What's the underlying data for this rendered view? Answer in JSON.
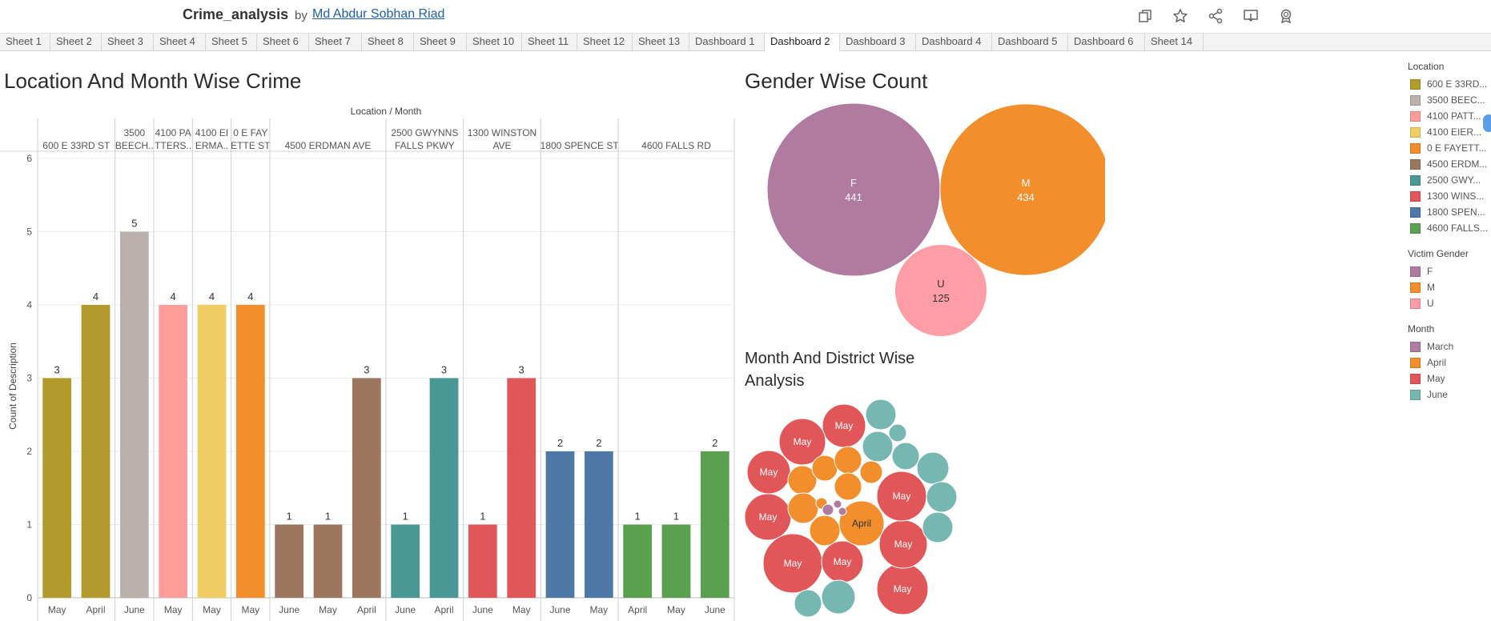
{
  "workbook": {
    "title": "Crime_analysis",
    "by_label": "by",
    "author": "Md Abdur Sobhan Riad"
  },
  "toolbar_icons": [
    "copy-icon",
    "star-icon",
    "share-icon",
    "download-icon",
    "badge-icon"
  ],
  "tabs": [
    "Sheet 1",
    "Sheet 2",
    "Sheet 3",
    "Sheet 4",
    "Sheet 5",
    "Sheet 6",
    "Sheet 7",
    "Sheet 8",
    "Sheet 9",
    "Sheet 10",
    "Sheet 11",
    "Sheet 12",
    "Sheet 13",
    "Dashboard 1",
    "Dashboard 2",
    "Dashboard 3",
    "Dashboard 4",
    "Dashboard 5",
    "Dashboard 6",
    "Sheet 14"
  ],
  "active_tab": "Dashboard 2",
  "dashboard": {
    "title_left": "Location And Month Wise Crime",
    "title_gender": "Gender Wise Count",
    "title_month_district": "Month And District Wise Analysis"
  },
  "chart_data": [
    {
      "type": "bar",
      "title": "Location And Month Wise Crime",
      "header_label": "Location / Month",
      "ylabel": "Count of Description",
      "ylim": [
        0,
        6
      ],
      "yticks": [
        "0",
        "1",
        "2",
        "3",
        "4",
        "5",
        "6"
      ],
      "grid": true,
      "panes": [
        {
          "label": [
            "600 E 33RD ST"
          ],
          "color": "#b39a2c",
          "bars": [
            {
              "month": "May",
              "value": 3
            },
            {
              "month": "April",
              "value": 4
            }
          ]
        },
        {
          "label": [
            "3500",
            "BEECH.."
          ],
          "color": "#bab0ac",
          "bars": [
            {
              "month": "June",
              "value": 5
            }
          ]
        },
        {
          "label": [
            "4100 PA",
            "TTERS.."
          ],
          "color": "#ff9d9a",
          "bars": [
            {
              "month": "May",
              "value": 4
            }
          ]
        },
        {
          "label": [
            "4100 EI",
            "ERMA.."
          ],
          "color": "#f1ce63",
          "bars": [
            {
              "month": "May",
              "value": 4
            }
          ]
        },
        {
          "label": [
            "0 E FAY",
            "ETTE ST"
          ],
          "color": "#f28e2b",
          "bars": [
            {
              "month": "May",
              "value": 4
            }
          ]
        },
        {
          "label": [
            "4500 ERDMAN AVE"
          ],
          "color": "#9d7660",
          "bars": [
            {
              "month": "June",
              "value": 1
            },
            {
              "month": "May",
              "value": 1
            },
            {
              "month": "April",
              "value": 3
            }
          ]
        },
        {
          "label": [
            "2500 GWYNNS",
            "FALLS PKWY"
          ],
          "color": "#499894",
          "bars": [
            {
              "month": "June",
              "value": 1
            },
            {
              "month": "April",
              "value": 3
            }
          ]
        },
        {
          "label": [
            "1300 WINSTON",
            "AVE"
          ],
          "color": "#e15759",
          "bars": [
            {
              "month": "June",
              "value": 1
            },
            {
              "month": "May",
              "value": 3
            }
          ]
        },
        {
          "label": [
            "1800 SPENCE ST"
          ],
          "color": "#4e79a7",
          "bars": [
            {
              "month": "June",
              "value": 2
            },
            {
              "month": "May",
              "value": 2
            }
          ]
        },
        {
          "label": [
            "4600 FALLS RD"
          ],
          "color": "#59a14f",
          "bars": [
            {
              "month": "April",
              "value": 1
            },
            {
              "month": "May",
              "value": 1
            },
            {
              "month": "June",
              "value": 2
            }
          ]
        }
      ]
    },
    {
      "type": "bubble",
      "title": "Gender Wise Count",
      "bubbles": [
        {
          "label": "F",
          "value": 441,
          "color": "#b07aa1"
        },
        {
          "label": "M",
          "value": 434,
          "color": "#f28e2b"
        },
        {
          "label": "U",
          "value": 125,
          "color": "#ff9da7"
        }
      ]
    },
    {
      "type": "bubble",
      "title": "Month And District Wise Analysis",
      "month_colors": {
        "March": "#b07aa1",
        "April": "#f28e2b",
        "May": "#e15759",
        "June": "#76b7b2"
      },
      "bubbles": [
        {
          "month": "May",
          "label": "May"
        },
        {
          "month": "May",
          "label": "May"
        },
        {
          "month": "May",
          "label": "May"
        },
        {
          "month": "May",
          "label": "May"
        },
        {
          "month": "May",
          "label": "May"
        },
        {
          "month": "May",
          "label": "May"
        },
        {
          "month": "May",
          "label": "May"
        },
        {
          "month": "May",
          "label": "May"
        },
        {
          "month": "May",
          "label": "May"
        },
        {
          "month": "April",
          "label": "April"
        },
        {
          "month": "April",
          "label": ""
        },
        {
          "month": "April",
          "label": ""
        },
        {
          "month": "April",
          "label": ""
        },
        {
          "month": "April",
          "label": ""
        },
        {
          "month": "April",
          "label": ""
        },
        {
          "month": "April",
          "label": ""
        },
        {
          "month": "April",
          "label": ""
        },
        {
          "month": "April",
          "label": ""
        },
        {
          "month": "June",
          "label": ""
        },
        {
          "month": "June",
          "label": ""
        },
        {
          "month": "June",
          "label": ""
        },
        {
          "month": "June",
          "label": ""
        },
        {
          "month": "June",
          "label": ""
        },
        {
          "month": "June",
          "label": ""
        },
        {
          "month": "June",
          "label": ""
        },
        {
          "month": "June",
          "label": ""
        },
        {
          "month": "June",
          "label": ""
        },
        {
          "month": "March",
          "label": ""
        },
        {
          "month": "March",
          "label": ""
        },
        {
          "month": "March",
          "label": ""
        }
      ]
    }
  ],
  "legends": [
    {
      "title": "Location",
      "items": [
        {
          "label": "600 E 33RD...",
          "color": "#b39a2c"
        },
        {
          "label": "3500 BEEC...",
          "color": "#bab0ac"
        },
        {
          "label": "4100 PATT...",
          "color": "#ff9d9a"
        },
        {
          "label": "4100 EIER...",
          "color": "#f1ce63"
        },
        {
          "label": "0 E FAYETT...",
          "color": "#f28e2b"
        },
        {
          "label": "4500 ERDM...",
          "color": "#9d7660"
        },
        {
          "label": "2500 GWY...",
          "color": "#499894"
        },
        {
          "label": "1300 WINS...",
          "color": "#e15759"
        },
        {
          "label": "1800 SPEN...",
          "color": "#4e79a7"
        },
        {
          "label": "4600 FALLS...",
          "color": "#59a14f"
        }
      ]
    },
    {
      "title": "Victim Gender",
      "items": [
        {
          "label": "F",
          "color": "#b07aa1"
        },
        {
          "label": "M",
          "color": "#f28e2b"
        },
        {
          "label": "U",
          "color": "#ff9da7"
        }
      ]
    },
    {
      "title": "Month",
      "items": [
        {
          "label": "March",
          "color": "#b07aa1"
        },
        {
          "label": "April",
          "color": "#f28e2b"
        },
        {
          "label": "May",
          "color": "#e15759"
        },
        {
          "label": "June",
          "color": "#76b7b2"
        }
      ]
    }
  ]
}
